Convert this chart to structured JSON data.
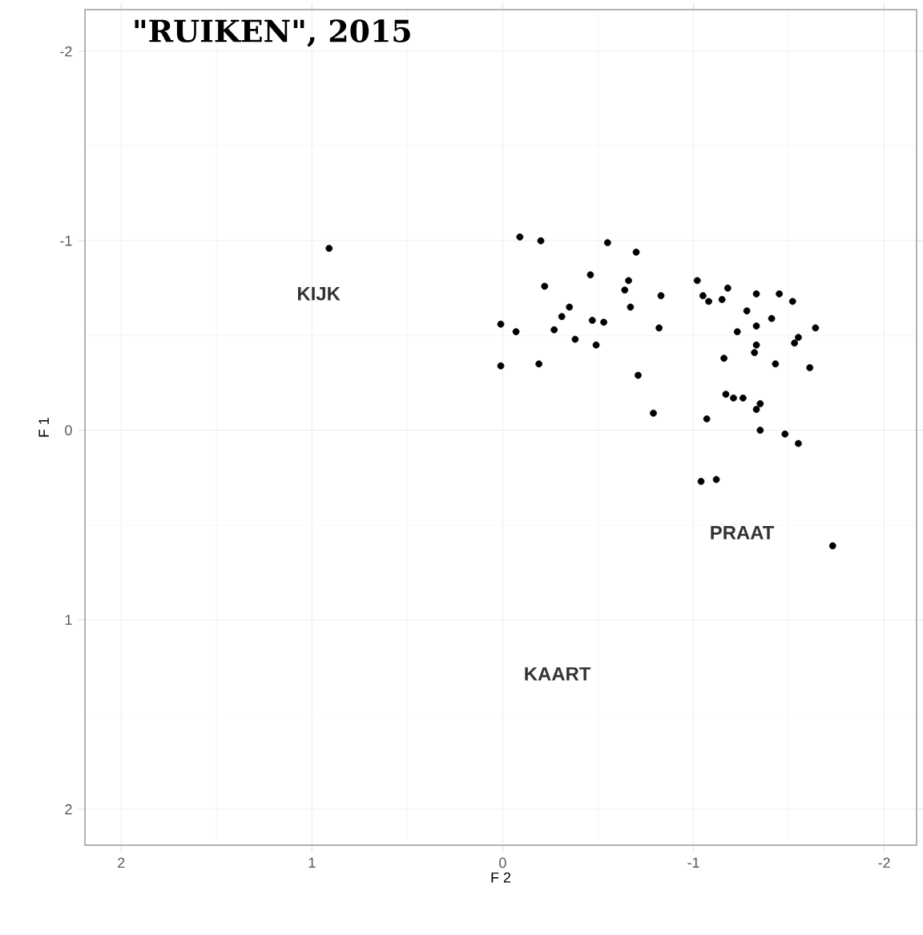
{
  "chart_data": {
    "type": "scatter",
    "title": "\"RUIKEN\", 2015",
    "xlabel": "F 2",
    "ylabel": "F 1",
    "xlim": [
      2.19,
      -2.17
    ],
    "ylim": [
      2.19,
      -2.22
    ],
    "xticks": [
      2,
      1,
      0,
      -1,
      -2
    ],
    "yticks": [
      -2,
      -1,
      0,
      1,
      2
    ],
    "grid": true,
    "marker": "circle",
    "annotations": [
      "KIJK",
      "PRAAT",
      "KAART"
    ],
    "series": [
      {
        "color": "#000000",
        "x": [
          0.91,
          -0.09,
          -0.2,
          -0.55,
          -0.7,
          -0.46,
          -0.66,
          -0.64,
          -0.22,
          -0.83,
          -0.67,
          -0.35,
          -0.31,
          -0.47,
          -0.53,
          0.01,
          -0.07,
          -0.27,
          -0.38,
          -0.82,
          -0.49,
          0.01,
          -0.19,
          -0.71,
          -0.79,
          -1.02,
          -1.05,
          -1.08,
          -1.15,
          -1.18,
          -1.33,
          -1.45,
          -1.52,
          -1.28,
          -1.41,
          -1.33,
          -1.23,
          -1.64,
          -1.55,
          -1.53,
          -1.33,
          -1.32,
          -1.16,
          -1.43,
          -1.61,
          -1.17,
          -1.21,
          -1.26,
          -1.35,
          -1.33,
          -1.07,
          -1.35,
          -1.48,
          -1.55,
          -1.04,
          -1.12,
          -1.73
        ],
        "values": [
          -0.96,
          -1.02,
          -1.0,
          -0.99,
          -0.94,
          -0.82,
          -0.79,
          -0.74,
          -0.76,
          -0.71,
          -0.65,
          -0.65,
          -0.6,
          -0.58,
          -0.57,
          -0.56,
          -0.52,
          -0.53,
          -0.48,
          -0.54,
          -0.45,
          -0.34,
          -0.35,
          -0.29,
          -0.09,
          -0.79,
          -0.71,
          -0.68,
          -0.69,
          -0.75,
          -0.72,
          -0.72,
          -0.68,
          -0.63,
          -0.59,
          -0.55,
          -0.52,
          -0.54,
          -0.49,
          -0.46,
          -0.45,
          -0.41,
          -0.38,
          -0.35,
          -0.33,
          -0.19,
          -0.17,
          -0.17,
          -0.14,
          -0.11,
          -0.06,
          0.0,
          0.02,
          0.07,
          0.27,
          0.26,
          0.61
        ]
      }
    ]
  }
}
